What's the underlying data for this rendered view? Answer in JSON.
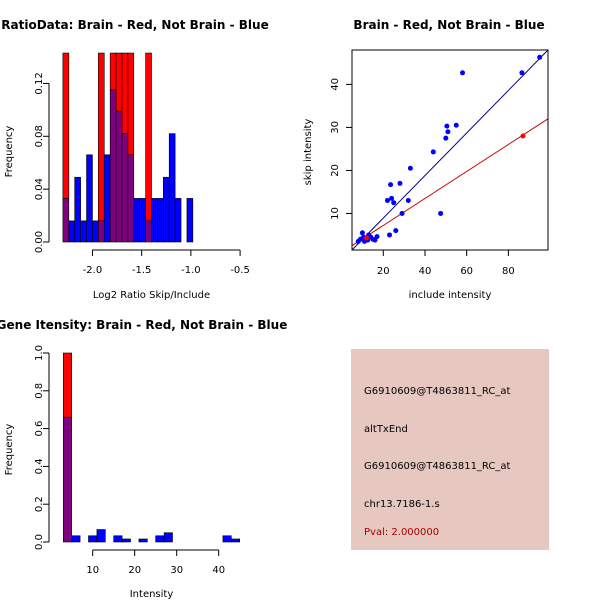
{
  "colors": {
    "red": "#ff0000",
    "blue": "#0000ff",
    "overlap": "#7f007f",
    "panel": "#e6c8c0",
    "pval": "#aa0000",
    "fitBlue": "#00008b",
    "fitRed": "#cc0000"
  },
  "info": {
    "line1": "G6910609@T4863811_RC_at",
    "line2": "altTxEnd",
    "line3": "G6910609@T4863811_RC_at",
    "line4": "chr13.7186-1.s",
    "pval": "Pval: 2.000000"
  },
  "chart_data": [
    {
      "type": "bar",
      "subtype": "overlaid-histogram",
      "title": "RatioData: Brain - Red, Not Brain - Blue",
      "xlabel": "Log2 Ratio Skip/Include",
      "ylabel": "Frequency",
      "xlim": [
        -2.36,
        -0.44
      ],
      "ylim": [
        0,
        0.14
      ],
      "xticks": [
        "-2.0",
        "-1.5",
        "-1.0",
        "-0.5"
      ],
      "xtick_values": [
        -2.0,
        -1.5,
        -1.0,
        -0.5
      ],
      "yticks": [
        "0.00",
        "0.04",
        "0.08",
        "0.12"
      ],
      "ytick_values": [
        0,
        0.04,
        0.08,
        0.12
      ],
      "bin_start": -2.3,
      "bin_width": 0.06,
      "series": [
        {
          "name": "Brain",
          "color": "red",
          "values": [
            0.143,
            0,
            0,
            0,
            0,
            0,
            0.143,
            0,
            0.143,
            0.143,
            0.143,
            0.143,
            0,
            0,
            0.143,
            0,
            0,
            0,
            0,
            0,
            0,
            0
          ]
        },
        {
          "name": "Not Brain",
          "color": "blue",
          "values": [
            0.033,
            0.016,
            0.049,
            0.016,
            0.066,
            0.016,
            0.016,
            0.066,
            0.115,
            0.099,
            0.082,
            0.066,
            0.033,
            0.033,
            0.016,
            0.033,
            0.033,
            0.049,
            0.082,
            0.033,
            0,
            0.033
          ]
        }
      ]
    },
    {
      "type": "scatter",
      "title": "Brain - Red, Not Brain - Blue",
      "xlabel": "include intensity",
      "ylabel": "skip intensity",
      "xlim": [
        5,
        99
      ],
      "ylim": [
        1.5,
        48
      ],
      "xticks": [
        "20",
        "40",
        "60",
        "80"
      ],
      "xtick_values": [
        20,
        40,
        60,
        80
      ],
      "yticks": [
        "10",
        "20",
        "30",
        "40"
      ],
      "ytick_values": [
        10,
        20,
        30,
        40
      ],
      "series": [
        {
          "name": "Not Brain",
          "color": "blue",
          "points": [
            [
              8,
              3.5
            ],
            [
              9,
              4
            ],
            [
              10,
              5.5
            ],
            [
              10.5,
              4.5
            ],
            [
              11,
              3.5
            ],
            [
              12,
              4.2
            ],
            [
              12.5,
              3.8
            ],
            [
              13,
              5
            ],
            [
              14,
              4.5
            ],
            [
              15,
              4
            ],
            [
              16,
              3.8
            ],
            [
              17,
              4.6
            ],
            [
              22,
              13
            ],
            [
              23,
              5
            ],
            [
              23.5,
              16.7
            ],
            [
              24,
              13.5
            ],
            [
              25,
              12.5
            ],
            [
              26,
              6
            ],
            [
              28,
              17
            ],
            [
              29,
              10
            ],
            [
              32,
              13
            ],
            [
              33,
              20.5
            ],
            [
              44,
              24.3
            ],
            [
              47.5,
              10
            ],
            [
              50,
              27.5
            ],
            [
              51,
              29
            ],
            [
              50.5,
              30.3
            ],
            [
              55,
              30.5
            ],
            [
              58,
              42.7
            ],
            [
              86.5,
              42.7
            ],
            [
              95,
              46.3
            ]
          ]
        },
        {
          "name": "Brain",
          "color": "red",
          "points": [
            [
              12,
              4.3
            ],
            [
              87,
              28
            ]
          ]
        }
      ],
      "fits": [
        {
          "name": "blue-fit",
          "color": "fitBlue",
          "from": [
            5,
            1.5
          ],
          "to": [
            99,
            48
          ]
        },
        {
          "name": "red-fit",
          "color": "fitRed",
          "from": [
            5,
            2.5
          ],
          "to": [
            99,
            32
          ]
        }
      ]
    },
    {
      "type": "bar",
      "subtype": "overlaid-histogram",
      "title": "Gene Itensity: Brain - Red, Not Brain - Blue",
      "xlabel": "Intensity",
      "ylabel": "Frequency",
      "xlim": [
        1.5,
        46.5
      ],
      "ylim": [
        0,
        1.0
      ],
      "xticks": [
        "10",
        "20",
        "30",
        "40"
      ],
      "xtick_values": [
        10,
        20,
        30,
        40
      ],
      "yticks": [
        "0.0",
        "0.2",
        "0.4",
        "0.6",
        "0.8",
        "1.0"
      ],
      "ytick_values": [
        0,
        0.2,
        0.4,
        0.6,
        0.8,
        1.0
      ],
      "bin_start": 3,
      "bin_width": 2,
      "series": [
        {
          "name": "Brain",
          "color": "red",
          "values": [
            1.0,
            0,
            0,
            0,
            0,
            0,
            0,
            0,
            0,
            0,
            0,
            0,
            0,
            0,
            0,
            0,
            0,
            0,
            0,
            0,
            0
          ]
        },
        {
          "name": "Not Brain",
          "color": "blue",
          "values": [
            0.66,
            0.033,
            0,
            0.033,
            0.066,
            0,
            0.033,
            0.016,
            0,
            0.016,
            0,
            0.033,
            0.049,
            0,
            0,
            0,
            0,
            0,
            0,
            0.033,
            0.016
          ]
        }
      ]
    }
  ]
}
